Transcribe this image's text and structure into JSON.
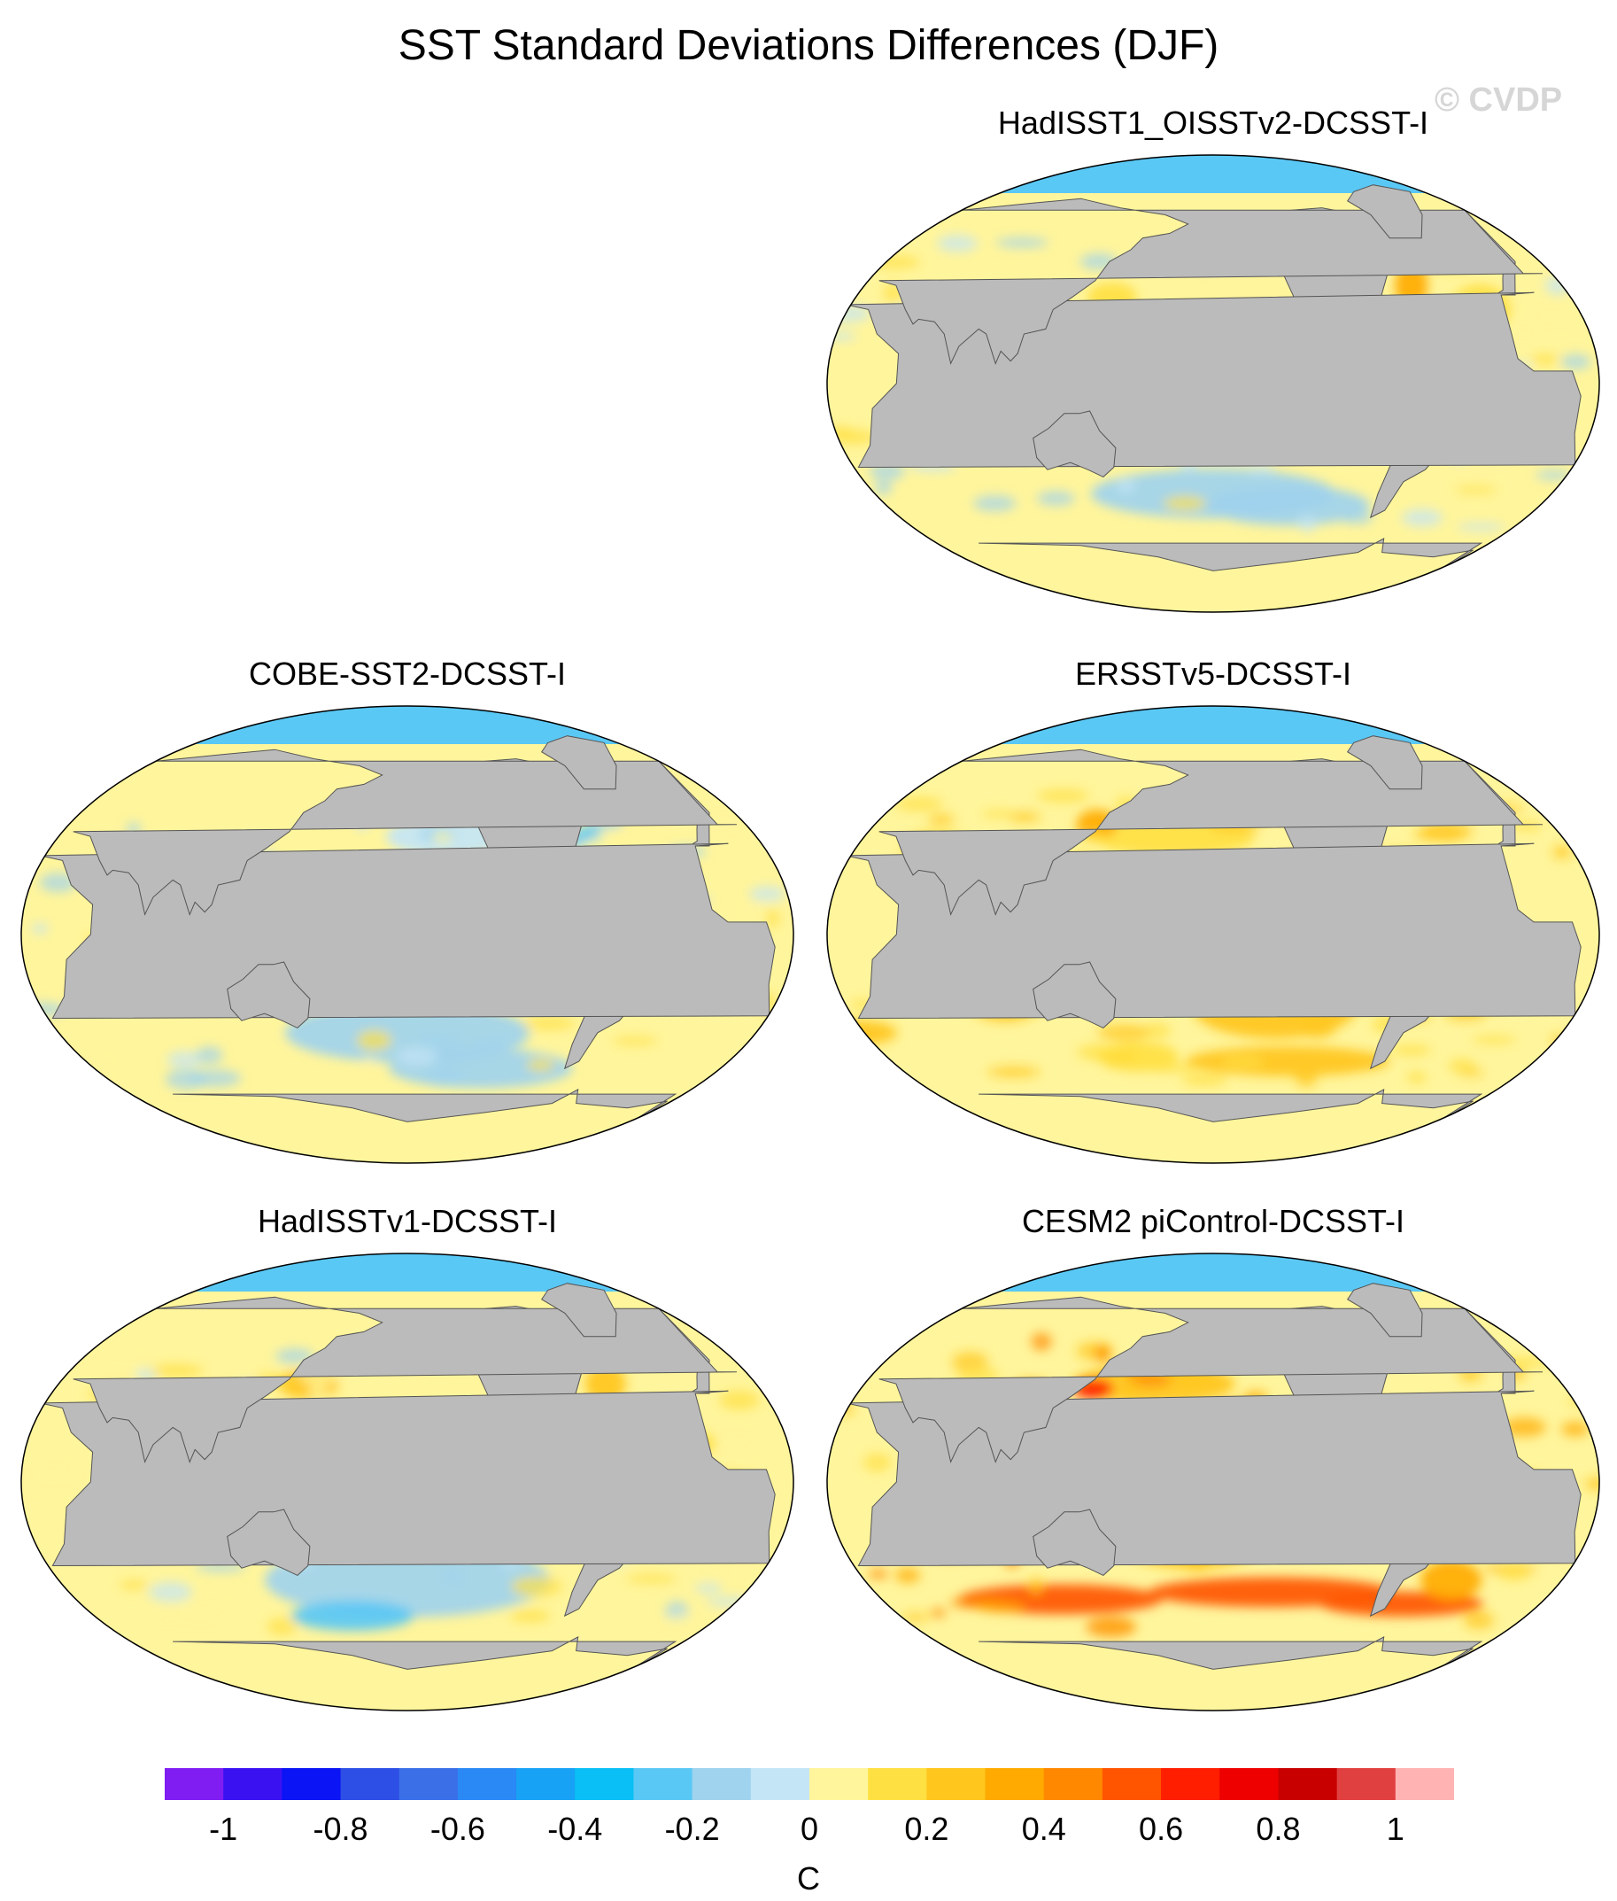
{
  "title": "SST Standard Deviations Differences (DJF)",
  "watermark": "© CVDP",
  "colors": {
    "land": "#bbbbbb",
    "scale": [
      "#7f1df2",
      "#3a12f2",
      "#0a14f5",
      "#2d4fe6",
      "#3a6fe8",
      "#2a89f5",
      "#17a2f5",
      "#09bff5",
      "#5ac8f5",
      "#9fd3ee",
      "#c4e5f6",
      "#fff59c",
      "#ffe042",
      "#ffc61e",
      "#ffaa00",
      "#ff8800",
      "#ff5500",
      "#ff1e00",
      "#ee0000",
      "#c80000",
      "#e14040",
      "#ffb3b3"
    ]
  },
  "colorbar": {
    "tick_labels": [
      "-1",
      "-0.8",
      "-0.6",
      "-0.4",
      "-0.2",
      "0",
      "0.2",
      "0.4",
      "0.6",
      "0.8",
      "1"
    ],
    "unit": "C"
  },
  "panels": [
    {
      "id": "hadisst1-oisstv2",
      "title": "HadISST1_OISSTv2-DCSST-I",
      "dominant": "mixed-cool"
    },
    {
      "id": "cobe-sst2",
      "title": "COBE-SST2-DCSST-I",
      "dominant": "mixed-cool"
    },
    {
      "id": "ersstv5",
      "title": "ERSSTv5-DCSST-I",
      "dominant": "warm"
    },
    {
      "id": "hadisstv1",
      "title": "HadISSTv1-DCSST-I",
      "dominant": "cool"
    },
    {
      "id": "cesm2-picontrol",
      "title": "CESM2 piControl-DCSST-I",
      "dominant": "hot"
    }
  ]
}
